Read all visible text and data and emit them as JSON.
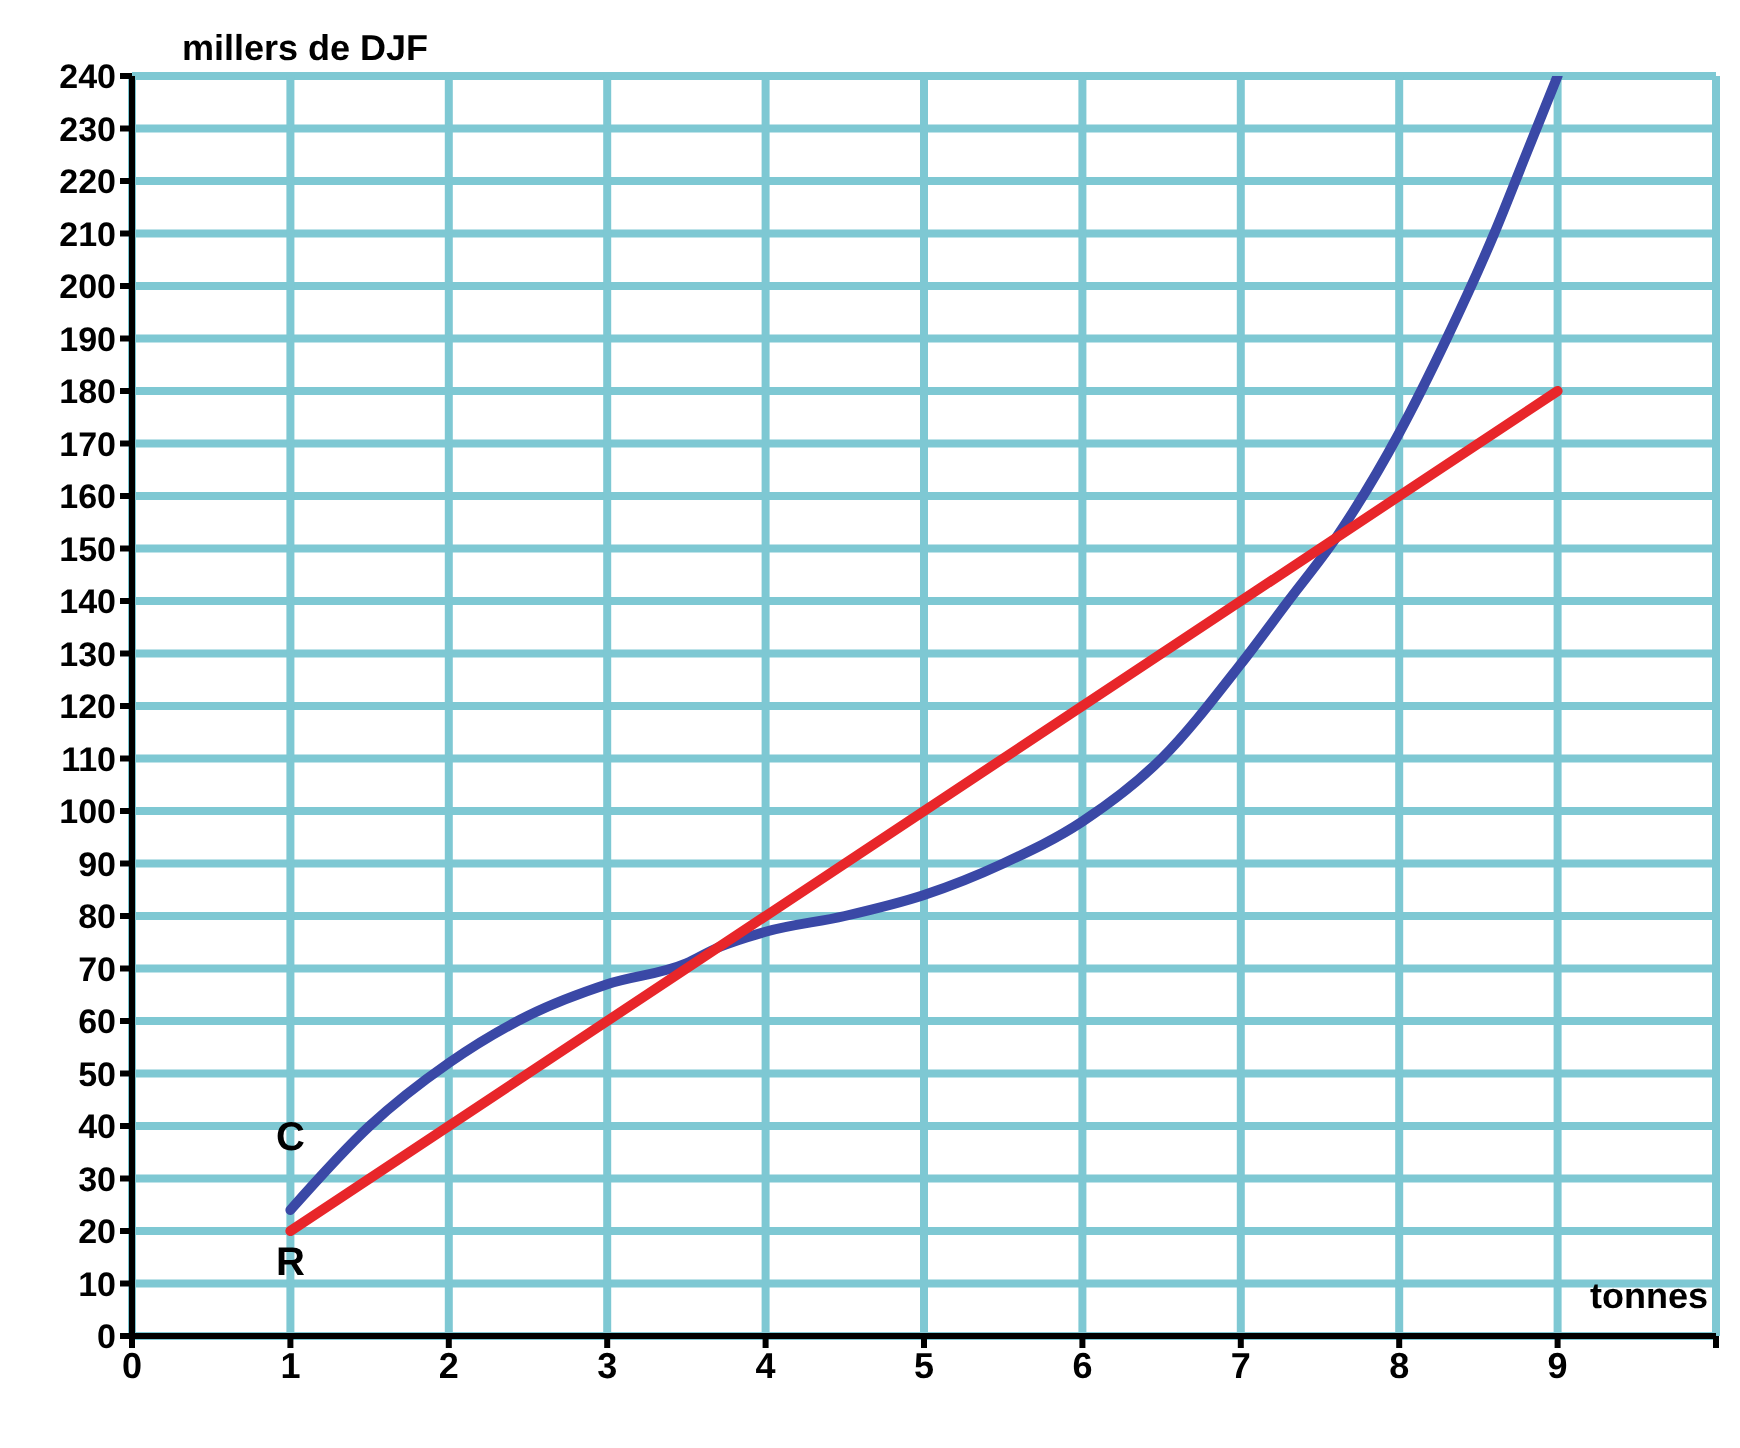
{
  "chart_data": {
    "type": "line",
    "xlabel": "tonnes",
    "ylabel": "millers de DJF",
    "xlim": [
      0,
      10
    ],
    "xticks": [
      0,
      1,
      2,
      3,
      4,
      5,
      6,
      7,
      8,
      9,
      {
        "value": 10,
        "label": null
      }
    ],
    "ylim": [
      0,
      240
    ],
    "yticks": [
      0,
      10,
      20,
      30,
      40,
      50,
      60,
      70,
      80,
      90,
      100,
      110,
      120,
      130,
      140,
      150,
      160,
      170,
      180,
      190,
      200,
      210,
      220,
      230,
      240
    ],
    "grid": true,
    "legend": false,
    "marker": "none",
    "line_style": "solid",
    "series": [
      {
        "color": "#3a48a6",
        "x": [
          1,
          1.5,
          2,
          2.5,
          3,
          3.5,
          3.7,
          4,
          4.5,
          5,
          5.5,
          6,
          6.5,
          7,
          7.3,
          7.6,
          8,
          8.3,
          8.6,
          8.8,
          9
        ],
        "values": [
          24,
          40,
          52,
          61,
          67,
          71,
          74,
          77,
          80,
          84,
          90,
          98,
          110,
          128,
          140,
          152,
          172,
          190,
          210,
          225,
          240
        ]
      },
      {
        "color": "#e8262a",
        "x": [
          1,
          9
        ],
        "values": [
          20,
          180
        ]
      }
    ],
    "annotations": [
      {
        "text": "C",
        "x": 1,
        "y": 24
      },
      {
        "text": "R",
        "x": 1,
        "y": 20
      }
    ]
  }
}
